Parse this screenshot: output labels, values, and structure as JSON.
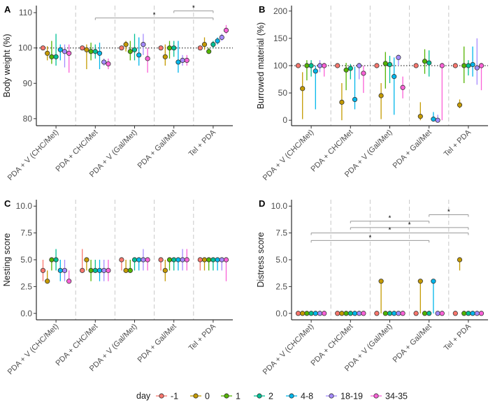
{
  "legend": {
    "title": "day",
    "days": [
      "-1",
      "0",
      "1",
      "2",
      "4-8",
      "18-19",
      "34-35"
    ],
    "colors": [
      "#F8766D",
      "#C49A00",
      "#53B400",
      "#00C094",
      "#00B6EB",
      "#A58AFF",
      "#FB61D7"
    ]
  },
  "chart_data": [
    {
      "type": "scatter",
      "panel": "A",
      "ylabel": "Body weight (%)",
      "ylim": [
        78,
        112
      ],
      "yticks": [
        80,
        90,
        100,
        110
      ],
      "reference_line": 100,
      "categories": [
        "PDA + V (CHC/Met)",
        "PDA + CHC/Met",
        "PDA + V (Gal/Met)",
        "PDA + Gal/Met",
        "Tel + PDA"
      ],
      "series": [
        {
          "day": "-1",
          "points": [
            [
              100,
              100,
              100
            ],
            [
              100,
              100,
              100
            ],
            [
              100,
              100,
              100
            ],
            [
              100,
              100,
              100
            ],
            [
              100,
              100,
              100
            ]
          ]
        },
        {
          "day": "0",
          "points": [
            [
              98.5,
              96.5,
              100.5
            ],
            [
              99.5,
              94,
              101
            ],
            [
              101,
              99,
              102
            ],
            [
              97.5,
              95,
              101
            ],
            [
              101,
              99.5,
              103
            ]
          ]
        },
        {
          "day": "1",
          "points": [
            [
              97.5,
              95.5,
              102
            ],
            [
              99,
              96.5,
              101.5
            ],
            [
              99,
              96.5,
              102
            ],
            [
              100,
              97,
              102
            ],
            [
              99,
              98.5,
              100
            ]
          ]
        },
        {
          "day": "2",
          "points": [
            [
              97.5,
              95,
              104
            ],
            [
              99,
              97,
              101
            ],
            [
              99.5,
              96.5,
              104
            ],
            [
              100,
              97.5,
              102
            ],
            [
              101,
              100,
              102
            ]
          ]
        },
        {
          "day": "4-8",
          "points": [
            [
              99.5,
              96.5,
              101
            ],
            [
              98.5,
              94,
              101.5
            ],
            [
              98,
              95,
              103
            ],
            [
              96,
              93,
              102
            ],
            [
              102,
              101,
              103
            ]
          ]
        },
        {
          "day": "18-19",
          "points": [
            [
              99,
              94.5,
              101
            ],
            [
              96,
              95,
              97
            ],
            [
              101,
              98,
              104
            ],
            [
              96.5,
              95,
              98
            ],
            [
              103,
              102,
              104
            ]
          ]
        },
        {
          "day": "34-35",
          "points": [
            [
              98.5,
              93,
              101
            ],
            [
              95.5,
              94,
              97
            ],
            [
              97,
              93,
              100
            ],
            [
              96.5,
              95,
              98
            ],
            [
              105,
              104,
              106.5
            ]
          ]
        }
      ],
      "significance": [
        {
          "from": "PDA + CHC/Met",
          "to": "Tel + PDA",
          "label": "*"
        },
        {
          "from": "PDA + Gal/Met",
          "to": "Tel + PDA",
          "label": "*"
        }
      ]
    },
    {
      "type": "scatter",
      "panel": "B",
      "ylabel": "Burrowed material (%)",
      "ylim": [
        -10,
        210
      ],
      "yticks": [
        0,
        50,
        100,
        150,
        200
      ],
      "reference_line": 100,
      "categories": [
        "PDA + V (CHC/Met)",
        "PDA + CHC/Met",
        "PDA + V (Gal/Met)",
        "PDA + Gal/Met",
        "Tel + PDA"
      ],
      "series": [
        {
          "day": "-1",
          "points": [
            [
              100,
              100,
              100
            ],
            [
              100,
              100,
              100
            ],
            [
              100,
              100,
              100
            ],
            [
              100,
              100,
              100
            ],
            [
              100,
              100,
              100
            ]
          ]
        },
        {
          "day": "0",
          "points": [
            [
              58,
              2,
              88
            ],
            [
              33,
              0,
              68
            ],
            [
              45,
              2,
              68
            ],
            [
              7,
              0,
              33
            ],
            [
              28,
              22,
              38
            ]
          ]
        },
        {
          "day": "1",
          "points": [
            [
              100,
              73,
              110
            ],
            [
              92,
              55,
              105
            ],
            [
              104,
              58,
              125
            ],
            [
              108,
              85,
              130
            ],
            [
              100,
              68,
              135
            ]
          ]
        },
        {
          "day": "2",
          "points": [
            [
              100,
              80,
              110
            ],
            [
              95,
              75,
              103
            ],
            [
              102,
              68,
              118
            ],
            [
              105,
              80,
              128
            ],
            [
              100,
              82,
              110
            ]
          ]
        },
        {
          "day": "4-8",
          "points": [
            [
              90,
              20,
              100
            ],
            [
              38,
              20,
              98
            ],
            [
              80,
              10,
              115
            ],
            [
              2,
              0,
              15
            ],
            [
              102,
              80,
              135
            ]
          ]
        },
        {
          "day": "18-19",
          "points": [
            [
              100,
              88,
              110
            ],
            [
              100,
              75,
              105
            ],
            [
              115,
              100,
              120
            ],
            [
              0,
              0,
              10
            ],
            [
              96,
              65,
              150
            ]
          ]
        },
        {
          "day": "34-35",
          "points": [
            [
              100,
              80,
              105
            ],
            [
              86,
              50,
              100
            ],
            [
              60,
              40,
              80
            ],
            [
              100,
              0,
              105
            ],
            [
              100,
              55,
              105
            ]
          ]
        }
      ],
      "significance": []
    },
    {
      "type": "scatter",
      "panel": "C",
      "ylabel": "Nesting score",
      "ylim": [
        -0.6,
        10.6
      ],
      "yticks": [
        0.0,
        2.5,
        5.0,
        7.5,
        10.0
      ],
      "tick_labels": [
        "0.0",
        "2.5",
        "5.0",
        "7.5",
        "10.0"
      ],
      "categories": [
        "PDA + V (CHC/Met)",
        "PDA + CHC/Met",
        "PDA + V (Gal/Met)",
        "PDA + Gal/Met",
        "Tel + PDA"
      ],
      "series": [
        {
          "day": "-1",
          "points": [
            [
              4,
              3,
              5
            ],
            [
              4,
              4,
              6
            ],
            [
              5,
              4,
              5
            ],
            [
              5,
              4,
              5
            ],
            [
              5,
              4,
              5
            ]
          ]
        },
        {
          "day": "0",
          "points": [
            [
              3,
              3,
              4
            ],
            [
              5,
              4,
              5
            ],
            [
              4,
              4,
              5
            ],
            [
              4,
              3,
              5
            ],
            [
              5,
              4,
              5
            ]
          ]
        },
        {
          "day": "1",
          "points": [
            [
              5,
              4,
              5
            ],
            [
              4,
              3,
              5
            ],
            [
              4,
              4,
              5
            ],
            [
              5,
              4,
              5
            ],
            [
              5,
              4,
              5
            ]
          ]
        },
        {
          "day": "2",
          "points": [
            [
              5,
              4,
              6
            ],
            [
              4,
              4,
              5
            ],
            [
              5,
              4,
              5
            ],
            [
              5,
              4,
              5
            ],
            [
              5,
              4,
              5
            ]
          ]
        },
        {
          "day": "4-8",
          "points": [
            [
              4,
              3,
              5
            ],
            [
              4,
              3,
              5
            ],
            [
              5,
              4,
              5
            ],
            [
              5,
              4,
              5
            ],
            [
              5,
              4,
              5
            ]
          ]
        },
        {
          "day": "18-19",
          "points": [
            [
              4,
              3,
              5
            ],
            [
              4,
              3,
              5
            ],
            [
              5,
              4,
              6
            ],
            [
              5,
              4,
              6
            ],
            [
              5,
              4,
              5
            ]
          ]
        },
        {
          "day": "34-35",
          "points": [
            [
              3,
              3,
              4
            ],
            [
              4,
              3,
              5
            ],
            [
              5,
              4,
              5
            ],
            [
              5,
              4,
              6
            ],
            [
              5,
              3,
              5
            ]
          ]
        }
      ],
      "significance": []
    },
    {
      "type": "scatter",
      "panel": "D",
      "ylabel": "Distress score",
      "ylim": [
        -0.6,
        10.6
      ],
      "yticks": [
        0.0,
        2.5,
        5.0,
        7.5,
        10.0
      ],
      "tick_labels": [
        "0.0",
        "2.5",
        "5.0",
        "7.5",
        "10.0"
      ],
      "categories": [
        "PDA + V (CHC/Met)",
        "PDA + CHC/Met",
        "PDA + V (Gal/Met)",
        "PDA + Gal/Met",
        "Tel + PDA"
      ],
      "series": [
        {
          "day": "-1",
          "points": [
            [
              0,
              0,
              0
            ],
            [
              0,
              0,
              0
            ],
            [
              0,
              0,
              0
            ],
            [
              0,
              0,
              0
            ],
            [
              0,
              0,
              0
            ]
          ]
        },
        {
          "day": "0",
          "points": [
            [
              0,
              0,
              0
            ],
            [
              0,
              0,
              0
            ],
            [
              3,
              0,
              3
            ],
            [
              3,
              0,
              3
            ],
            [
              5,
              4,
              5
            ]
          ]
        },
        {
          "day": "1",
          "points": [
            [
              0,
              0,
              0
            ],
            [
              0,
              0,
              0
            ],
            [
              0,
              0,
              0
            ],
            [
              0,
              0,
              0
            ],
            [
              0,
              0,
              0
            ]
          ]
        },
        {
          "day": "2",
          "points": [
            [
              0,
              0,
              0
            ],
            [
              0,
              0,
              0
            ],
            [
              0,
              0,
              0
            ],
            [
              0,
              0,
              0
            ],
            [
              0,
              0,
              0
            ]
          ]
        },
        {
          "day": "4-8",
          "points": [
            [
              0,
              0,
              0
            ],
            [
              0,
              0,
              0
            ],
            [
              0,
              0,
              0
            ],
            [
              3,
              0,
              3
            ],
            [
              0,
              0,
              0
            ]
          ]
        },
        {
          "day": "18-19",
          "points": [
            [
              0,
              0,
              0
            ],
            [
              0,
              0,
              0
            ],
            [
              0,
              0,
              0
            ],
            [
              0,
              0,
              0
            ],
            [
              0,
              0,
              0
            ]
          ]
        },
        {
          "day": "34-35",
          "points": [
            [
              0,
              0,
              0
            ],
            [
              0,
              0,
              0
            ],
            [
              0,
              0,
              0
            ],
            [
              0,
              0,
              0
            ],
            [
              0,
              0,
              0
            ]
          ]
        }
      ],
      "significance": [
        {
          "from": "PDA + Gal/Met",
          "to": "Tel + PDA",
          "label": "*"
        },
        {
          "from": "PDA + CHC/Met",
          "to": "PDA + Gal/Met",
          "label": "*"
        },
        {
          "from": "PDA + CHC/Met",
          "to": "Tel + PDA",
          "label": "*"
        },
        {
          "from": "PDA + V (CHC/Met)",
          "to": "Tel + PDA",
          "label": "*"
        },
        {
          "from": "PDA + V (CHC/Met)",
          "to": "PDA + Gal/Met",
          "label": "*"
        }
      ]
    }
  ]
}
